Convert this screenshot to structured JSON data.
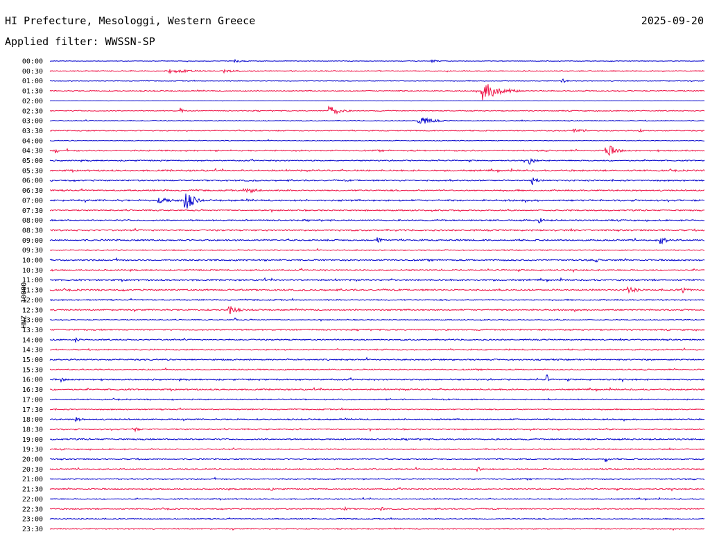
{
  "header": {
    "station": "HI Prefecture, Mesologgi, Western Greece",
    "date": "2025-09-20",
    "filter": "Applied filter: WWSSN-SP"
  },
  "colors": {
    "trace_a": "#0000cc",
    "trace_b": "#ee1144"
  },
  "chart_data": {
    "type": "line",
    "title": "HI Prefecture, Mesologgi, Western Greece",
    "date": "2025-09-20",
    "ylabel": "HNZ - 10000",
    "line_start_times": [
      "00:00",
      "00:30",
      "01:00",
      "01:30",
      "02:00",
      "02:30",
      "03:00",
      "03:30",
      "04:00",
      "04:30",
      "05:00",
      "05:30",
      "06:00",
      "06:30",
      "07:00",
      "07:30",
      "08:00",
      "08:30",
      "09:00",
      "09:30",
      "10:00",
      "10:30",
      "11:00",
      "11:30",
      "12:00",
      "12:30",
      "13:00",
      "13:30",
      "14:00",
      "14:30",
      "15:00",
      "15:30",
      "16:00",
      "16:30",
      "17:00",
      "17:30",
      "18:00",
      "18:30",
      "19:00",
      "19:30",
      "20:00",
      "20:30",
      "21:00",
      "21:30",
      "22:00",
      "22:30",
      "23:00",
      "23:30"
    ],
    "minutes_per_line": 30,
    "series_colors": [
      "#0000cc",
      "#ee1144"
    ],
    "noise_level": [
      0.5,
      0.8,
      0.6,
      0.9,
      0.2,
      0.8,
      0.7,
      0.9,
      0.6,
      1.2,
      1.0,
      1.3,
      1.2,
      1.2,
      1.4,
      1.1,
      1.2,
      1.3,
      1.3,
      0.9,
      1.3,
      1.1,
      1.3,
      1.3,
      1.0,
      1.2,
      0.8,
      1.1,
      1.1,
      1.1,
      1.2,
      1.0,
      1.2,
      1.2,
      1.0,
      1.0,
      1.1,
      1.1,
      1.2,
      1.0,
      1.0,
      1.0,
      1.0,
      1.0,
      0.9,
      1.0,
      0.8,
      0.9
    ],
    "events": [
      {
        "line": 0,
        "minute": 8.5,
        "amplitude": 2,
        "duration": 1.0
      },
      {
        "line": 0,
        "minute": 17.5,
        "amplitude": 2,
        "duration": 0.8
      },
      {
        "line": 1,
        "minute": 5.5,
        "amplitude": 3,
        "duration": 2.5
      },
      {
        "line": 1,
        "minute": 8.0,
        "amplitude": 3,
        "duration": 1.5
      },
      {
        "line": 2,
        "minute": 23.5,
        "amplitude": 3,
        "duration": 0.5
      },
      {
        "line": 3,
        "minute": 19.8,
        "amplitude": 14,
        "duration": 1.8
      },
      {
        "line": 5,
        "minute": 6.0,
        "amplitude": 5,
        "duration": 0.3
      },
      {
        "line": 5,
        "minute": 12.8,
        "amplitude": 9,
        "duration": 1.0
      },
      {
        "line": 6,
        "minute": 16.9,
        "amplitude": 7,
        "duration": 1.3
      },
      {
        "line": 7,
        "minute": 24.0,
        "amplitude": 3,
        "duration": 1.2
      },
      {
        "line": 7,
        "minute": 27.0,
        "amplitude": 4,
        "duration": 0.3
      },
      {
        "line": 9,
        "minute": 0.3,
        "amplitude": 5,
        "duration": 0.3
      },
      {
        "line": 9,
        "minute": 25.5,
        "amplitude": 12,
        "duration": 0.8
      },
      {
        "line": 10,
        "minute": 22.0,
        "amplitude": 6,
        "duration": 0.5
      },
      {
        "line": 12,
        "minute": 22.1,
        "amplitude": 7,
        "duration": 0.5
      },
      {
        "line": 13,
        "minute": 9.0,
        "amplitude": 4,
        "duration": 1.5
      },
      {
        "line": 14,
        "minute": 6.2,
        "amplitude": 16,
        "duration": 0.8
      },
      {
        "line": 14,
        "minute": 5.0,
        "amplitude": 4,
        "duration": 2.0
      },
      {
        "line": 16,
        "minute": 22.4,
        "amplitude": 5,
        "duration": 0.5
      },
      {
        "line": 18,
        "minute": 15.0,
        "amplitude": 5,
        "duration": 0.6
      },
      {
        "line": 18,
        "minute": 28.0,
        "amplitude": 7,
        "duration": 0.6
      },
      {
        "line": 20,
        "minute": 25.0,
        "amplitude": 4,
        "duration": 0.4
      },
      {
        "line": 23,
        "minute": 26.5,
        "amplitude": 5,
        "duration": 1.0
      },
      {
        "line": 23,
        "minute": 29.0,
        "amplitude": 5,
        "duration": 0.6
      },
      {
        "line": 25,
        "minute": 8.2,
        "amplitude": 8,
        "duration": 0.8
      },
      {
        "line": 26,
        "minute": 8.5,
        "amplitude": 3,
        "duration": 0.2
      },
      {
        "line": 28,
        "minute": 1.2,
        "amplitude": 4,
        "duration": 0.4
      },
      {
        "line": 32,
        "minute": 0.5,
        "amplitude": 4,
        "duration": 0.4
      },
      {
        "line": 32,
        "minute": 22.8,
        "amplitude": 7,
        "duration": 0.1
      },
      {
        "line": 36,
        "minute": 1.2,
        "amplitude": 4,
        "duration": 0.6
      },
      {
        "line": 37,
        "minute": 3.8,
        "amplitude": 5,
        "duration": 0.5
      },
      {
        "line": 40,
        "minute": 25.5,
        "amplitude": 5,
        "duration": 0.3
      },
      {
        "line": 41,
        "minute": 19.6,
        "amplitude": 5,
        "duration": 0.3
      },
      {
        "line": 43,
        "minute": 10.1,
        "amplitude": 4,
        "duration": 0.4
      },
      {
        "line": 45,
        "minute": 15.2,
        "amplitude": 3,
        "duration": 0.5
      },
      {
        "line": 45,
        "minute": 13.5,
        "amplitude": 3,
        "duration": 0.5
      }
    ]
  }
}
